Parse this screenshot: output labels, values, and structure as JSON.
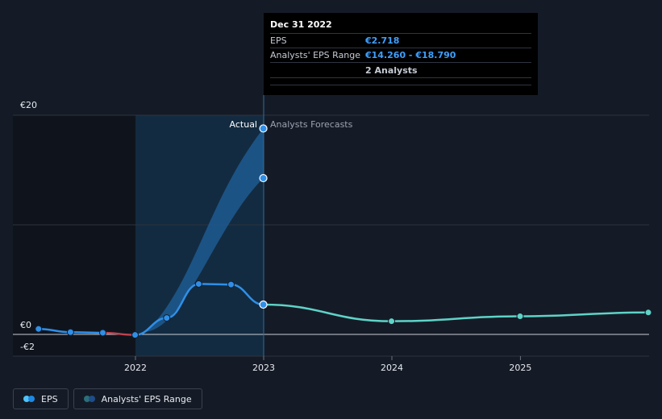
{
  "tooltip": {
    "date": "Dec 31 2022",
    "rows": [
      {
        "label": "EPS",
        "value": "€2.718"
      },
      {
        "label": "Analysts' EPS Range",
        "value": "€14.260 - €18.790"
      }
    ],
    "analysts": "2 Analysts"
  },
  "labels": {
    "actual": "Actual",
    "forecast": "Analysts Forecasts"
  },
  "legend": [
    {
      "label": "EPS",
      "colors": [
        "#4fc3f7",
        "#1e88e5"
      ]
    },
    {
      "label": "Analysts' EPS Range",
      "colors": [
        "#2a6f7a",
        "#1f4d8a"
      ]
    }
  ],
  "colors": {
    "actual_line": "#2f8fe8",
    "forecast_line": "#5ed3c8",
    "negative_segment": "#c0424f",
    "range_fill": "#1e5a92",
    "past_shade": "#0f141c",
    "highlight_shade": "#13314a"
  },
  "chart_data": {
    "type": "line",
    "x_axis": {
      "ticks": [
        "2022",
        "2023",
        "2024",
        "2025"
      ]
    },
    "y_axis": {
      "ticks": [
        {
          "label": "€20",
          "value": 20
        },
        {
          "label": "€0",
          "value": 0
        },
        {
          "label": "-€2",
          "value": -2
        }
      ],
      "range": [
        -2,
        20
      ]
    },
    "series": [
      {
        "name": "EPS",
        "kind": "actual",
        "points": [
          {
            "x": "2021-03-31",
            "y": 0.5
          },
          {
            "x": "2021-06-30",
            "y": 0.2
          },
          {
            "x": "2021-09-30",
            "y": 0.15
          },
          {
            "x": "2021-12-31",
            "y": -0.05
          },
          {
            "x": "2022-03-31",
            "y": 1.5
          },
          {
            "x": "2022-06-30",
            "y": 4.6
          },
          {
            "x": "2022-09-30",
            "y": 4.55
          },
          {
            "x": "2022-12-31",
            "y": 2.718
          }
        ]
      },
      {
        "name": "EPS",
        "kind": "forecast",
        "points": [
          {
            "x": "2022-12-31",
            "y": 2.718
          },
          {
            "x": "2023-12-31",
            "y": 1.2
          },
          {
            "x": "2024-12-31",
            "y": 1.65
          },
          {
            "x": "2025-12-31",
            "y": 2.0
          }
        ]
      }
    ],
    "range": {
      "name": "Analysts' EPS Range",
      "points": [
        {
          "x": "2022-01-31",
          "low": 1.5,
          "high": 1.55
        },
        {
          "x": "2022-12-31",
          "low": 14.26,
          "high": 18.79
        }
      ]
    }
  }
}
